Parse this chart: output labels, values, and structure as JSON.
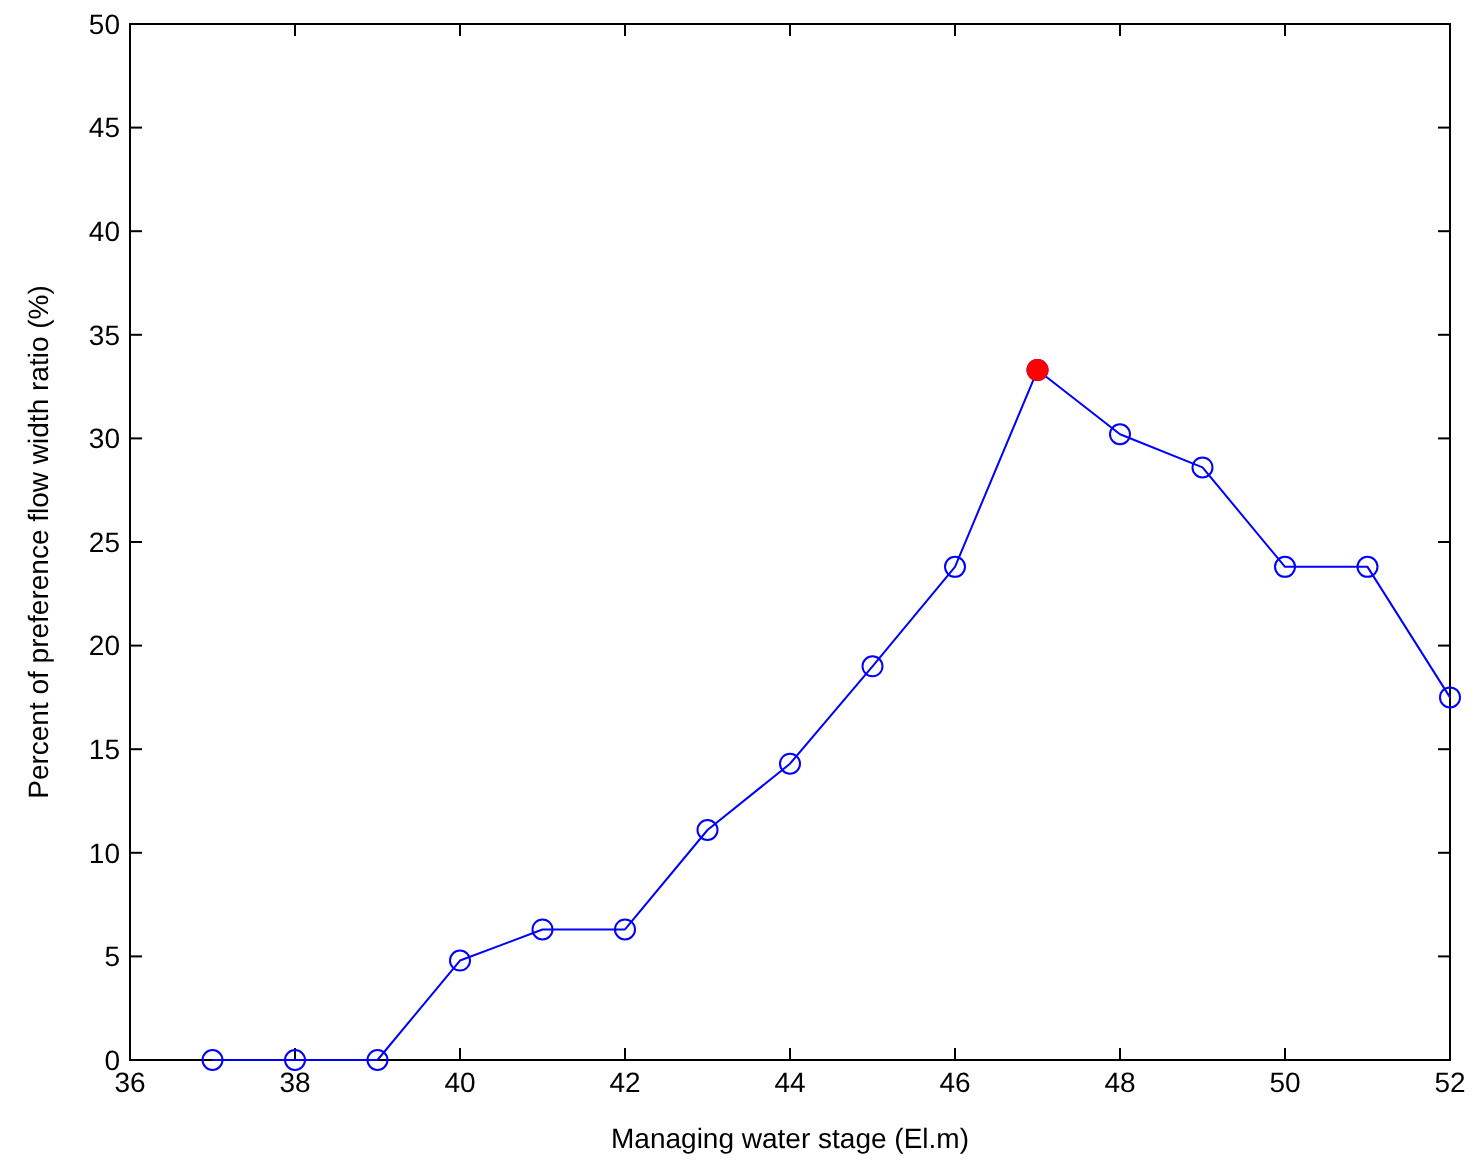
{
  "chart_data": {
    "type": "line",
    "xlabel": "Managing water stage (El.m)",
    "ylabel": "Percent of preference flow width ratio (%)",
    "xlim": [
      36,
      52
    ],
    "xticks": [
      36,
      38,
      40,
      42,
      44,
      46,
      48,
      50,
      52
    ],
    "ylim": [
      0,
      50
    ],
    "yticks": [
      0,
      5,
      10,
      15,
      20,
      25,
      30,
      35,
      40,
      45,
      50
    ],
    "grid": false,
    "marker": "circle",
    "line_style": "solid",
    "series": [
      {
        "color": "#0000ff",
        "x": [
          37,
          38,
          39,
          40,
          41,
          42,
          43,
          44,
          45,
          46,
          47,
          48,
          49,
          50,
          51,
          52
        ],
        "values": [
          0,
          0,
          0,
          4.8,
          6.3,
          6.3,
          11.1,
          14.3,
          19.0,
          23.8,
          33.3,
          30.2,
          28.6,
          23.8,
          23.8,
          17.5
        ]
      },
      {
        "type": "scatter",
        "color": "#ff0000",
        "x": [
          47
        ],
        "values": [
          33.3
        ]
      }
    ]
  }
}
